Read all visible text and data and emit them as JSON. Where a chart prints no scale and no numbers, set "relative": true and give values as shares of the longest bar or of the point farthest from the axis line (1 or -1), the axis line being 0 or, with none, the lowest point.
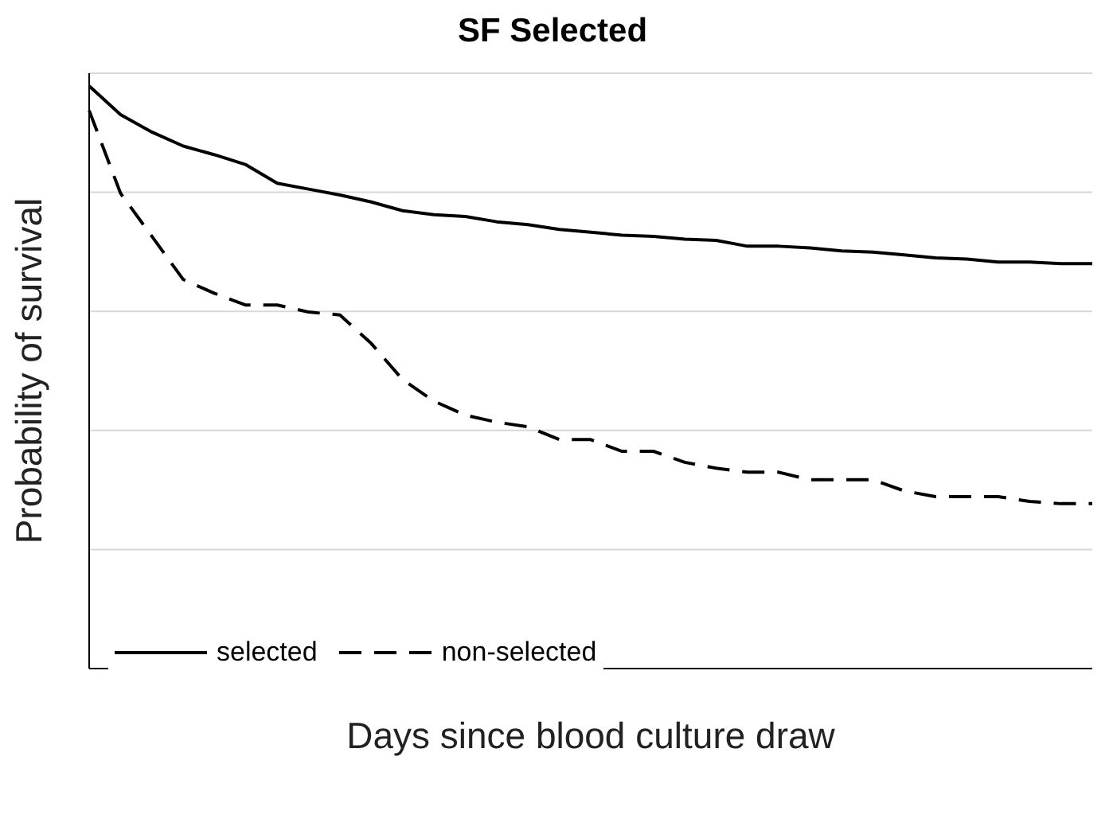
{
  "chart_data": {
    "type": "line",
    "title": "SF Selected",
    "xlabel": "Days since blood culture draw",
    "ylabel": "Probability of survival",
    "relative": true,
    "grid": "y",
    "legend": "bottom left",
    "marker": "none",
    "categories": [
      null,
      null,
      null,
      null,
      null,
      null,
      null,
      null,
      null,
      null,
      null,
      null,
      null,
      null,
      null,
      null,
      null,
      null,
      null,
      null,
      null,
      null,
      null,
      null,
      null,
      null,
      null,
      null,
      null,
      null,
      null,
      null,
      null
    ],
    "series": [
      {
        "name": "selected",
        "color": "#000000",
        "line_style": "solid",
        "values": [
          1.0,
          0.951,
          0.921,
          0.897,
          0.882,
          0.865,
          0.833,
          0.823,
          0.813,
          0.801,
          0.786,
          0.779,
          0.776,
          0.767,
          0.762,
          0.754,
          0.749,
          0.744,
          0.742,
          0.737,
          0.735,
          0.725,
          0.725,
          0.722,
          0.717,
          0.715,
          0.71,
          0.705,
          0.703,
          0.698,
          0.698,
          0.695,
          0.695
        ]
      },
      {
        "name": "non-selected",
        "color": "#000000",
        "line_style": "dashed",
        "values": [
          0.958,
          0.816,
          0.742,
          0.668,
          0.644,
          0.624,
          0.624,
          0.612,
          0.607,
          0.558,
          0.496,
          0.459,
          0.435,
          0.423,
          0.415,
          0.393,
          0.393,
          0.373,
          0.373,
          0.354,
          0.344,
          0.337,
          0.337,
          0.324,
          0.324,
          0.324,
          0.305,
          0.295,
          0.295,
          0.295,
          0.287,
          0.283,
          0.283
        ]
      }
    ]
  }
}
